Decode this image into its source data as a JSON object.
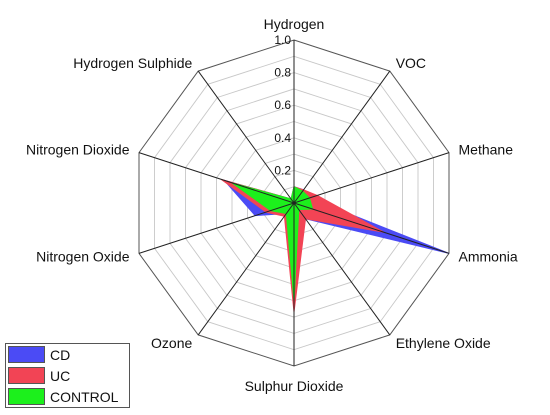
{
  "chart_data": {
    "type": "radar",
    "axes": [
      "Hydrogen",
      "VOC",
      "Methane",
      "Ammonia",
      "Ethylene Oxide",
      "Sulphur Dioxide",
      "Ozone",
      "Nitrogen Oxide",
      "Nitrogen Dioxide",
      "Hydrogen Sulphide"
    ],
    "ticks": [
      "0.2",
      "0.4",
      "0.6",
      "0.8",
      "1.0"
    ],
    "rlim": [
      0,
      1
    ],
    "series": [
      {
        "name": "CD",
        "color": "#4b4bf5",
        "values": [
          0.1,
          0.1,
          0.1,
          1.0,
          0.12,
          0.5,
          0.08,
          0.25,
          0.45,
          0.03
        ]
      },
      {
        "name": "UC",
        "color": "#f24455",
        "values": [
          0.1,
          0.1,
          0.15,
          0.58,
          0.12,
          0.67,
          0.1,
          0.18,
          0.47,
          0.03
        ]
      },
      {
        "name": "CONTROL",
        "color": "#1cf01c",
        "values": [
          0.1,
          0.09,
          0.1,
          0.12,
          0.05,
          0.6,
          0.08,
          0.15,
          0.4,
          0.03
        ]
      }
    ],
    "grid": true,
    "legend_position": "bottom-left"
  }
}
